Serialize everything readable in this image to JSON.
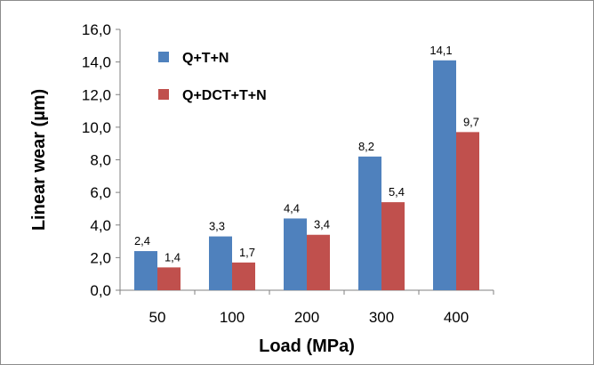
{
  "chart_data": {
    "type": "bar",
    "categories": [
      "50",
      "100",
      "200",
      "300",
      "400"
    ],
    "series": [
      {
        "name": "Q+T+N",
        "values": [
          2.4,
          3.3,
          4.4,
          8.2,
          14.1
        ],
        "color": "#4f81bd",
        "labels": [
          "2,4",
          "3,3",
          "4,4",
          "8,2",
          "14,1"
        ]
      },
      {
        "name": "Q+DCT+T+N",
        "values": [
          1.4,
          1.7,
          3.4,
          5.4,
          9.7
        ],
        "color": "#c0504d",
        "labels": [
          "1,4",
          "1,7",
          "3,4",
          "5,4",
          "9,7"
        ]
      }
    ],
    "xlabel": "Load (MPa)",
    "ylabel": "Linear wear (µm)",
    "ylim": [
      0,
      16
    ],
    "yticks": [
      0,
      2,
      4,
      6,
      8,
      10,
      12,
      14,
      16
    ],
    "ytick_labels": [
      "0,0",
      "2,0",
      "4,0",
      "6,0",
      "8,0",
      "10,0",
      "12,0",
      "14,0",
      "16,0"
    ],
    "grid": false,
    "legend_position": "top-left"
  }
}
